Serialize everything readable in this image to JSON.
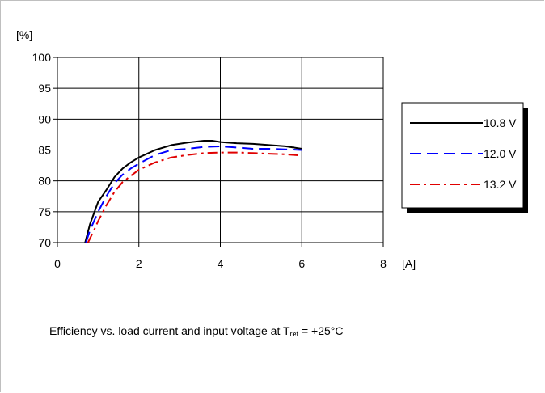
{
  "chart_data": {
    "type": "line",
    "ylabel": "[%]",
    "xlabel": "[A]",
    "xlim": [
      0,
      8
    ],
    "ylim": [
      70,
      100
    ],
    "xticks": [
      "0",
      "2",
      "4",
      "6",
      "8"
    ],
    "yticks": [
      "70",
      "75",
      "80",
      "85",
      "90",
      "95",
      "100"
    ],
    "grid": true,
    "legend_position": "right",
    "series": [
      {
        "name": "10.8 V",
        "color": "#000000",
        "dash": "solid",
        "points": [
          [
            0.68,
            70
          ],
          [
            0.8,
            73
          ],
          [
            1.0,
            76.6
          ],
          [
            1.2,
            78.5
          ],
          [
            1.4,
            80.6
          ],
          [
            1.6,
            82
          ],
          [
            1.8,
            83
          ],
          [
            2.0,
            83.8
          ],
          [
            2.4,
            85
          ],
          [
            2.8,
            85.8
          ],
          [
            3.2,
            86.2
          ],
          [
            3.6,
            86.5
          ],
          [
            3.8,
            86.5
          ],
          [
            4.0,
            86.3
          ],
          [
            4.4,
            86.1
          ],
          [
            4.8,
            86
          ],
          [
            5.2,
            85.8
          ],
          [
            5.6,
            85.6
          ],
          [
            6.0,
            85.2
          ]
        ]
      },
      {
        "name": "12.0 V",
        "color": "#0000ff",
        "dash": "dashed",
        "points": [
          [
            0.7,
            70
          ],
          [
            0.8,
            72
          ],
          [
            1.0,
            75
          ],
          [
            1.2,
            77.5
          ],
          [
            1.4,
            79.6
          ],
          [
            1.6,
            81
          ],
          [
            1.8,
            82
          ],
          [
            2.0,
            82.8
          ],
          [
            2.4,
            84.2
          ],
          [
            2.8,
            85
          ],
          [
            3.2,
            85.2
          ],
          [
            3.6,
            85.5
          ],
          [
            4.0,
            85.6
          ],
          [
            4.4,
            85.4
          ],
          [
            4.8,
            85.2
          ],
          [
            5.2,
            85.2
          ],
          [
            5.6,
            85.1
          ],
          [
            6.0,
            85
          ]
        ]
      },
      {
        "name": "13.2 V",
        "color": "#e00000",
        "dash": "dashdot",
        "points": [
          [
            0.75,
            70
          ],
          [
            0.9,
            72
          ],
          [
            1.0,
            73.5
          ],
          [
            1.2,
            76
          ],
          [
            1.4,
            78.2
          ],
          [
            1.6,
            79.8
          ],
          [
            1.8,
            80.8
          ],
          [
            2.0,
            81.8
          ],
          [
            2.4,
            83
          ],
          [
            2.8,
            83.8
          ],
          [
            3.2,
            84.2
          ],
          [
            3.6,
            84.5
          ],
          [
            4.0,
            84.6
          ],
          [
            4.4,
            84.6
          ],
          [
            4.8,
            84.5
          ],
          [
            5.2,
            84.4
          ],
          [
            5.6,
            84.3
          ],
          [
            6.0,
            84.1
          ]
        ]
      }
    ]
  },
  "caption": {
    "before": "Efficiency vs. load current and input voltage at T",
    "subscript": "ref",
    "after": " = +25°C"
  }
}
